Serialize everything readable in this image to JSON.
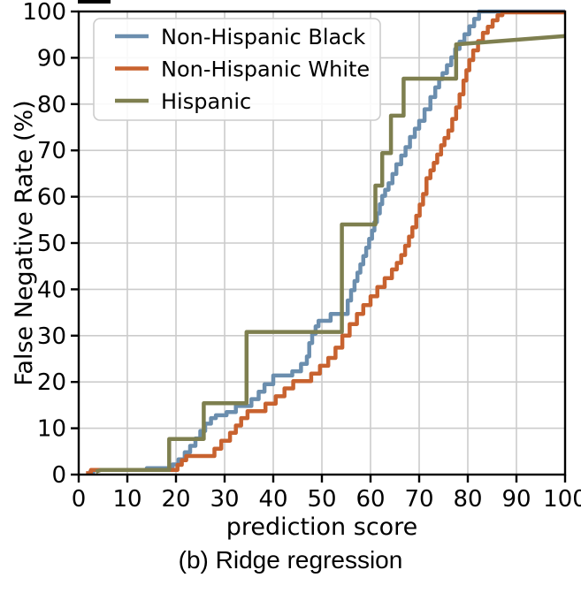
{
  "figure": {
    "caption": "(b) Ridge regression"
  },
  "chart_data": {
    "type": "line",
    "subtype": "ecdf-step-curves",
    "title": "",
    "xlabel": "prediction score",
    "ylabel": "False Negative Rate (%)",
    "xlim": [
      0,
      100
    ],
    "ylim": [
      0,
      100
    ],
    "xticks": [
      0,
      10,
      20,
      30,
      40,
      50,
      60,
      70,
      80,
      90,
      100
    ],
    "yticks": [
      0,
      10,
      20,
      30,
      40,
      50,
      60,
      70,
      80,
      90,
      100
    ],
    "grid": true,
    "grid_color": "#cccccc",
    "legend_position": "upper left",
    "series": [
      {
        "name": "Non-Hispanic Black",
        "color": "#6b8eae",
        "mode": "step",
        "points": [
          [
            2,
            0.5
          ],
          [
            3,
            1
          ],
          [
            14,
            1.4
          ],
          [
            19.3,
            2.2
          ],
          [
            20.5,
            3.3
          ],
          [
            21.8,
            4.8
          ],
          [
            22.9,
            6.2
          ],
          [
            24,
            7.8
          ],
          [
            25,
            9.4
          ],
          [
            26,
            11
          ],
          [
            27.2,
            12.2
          ],
          [
            28.2,
            12.8
          ],
          [
            30.4,
            13.5
          ],
          [
            32.3,
            14.8
          ],
          [
            35.5,
            16.3
          ],
          [
            37,
            17.9
          ],
          [
            38.2,
            19.5
          ],
          [
            40,
            21.4
          ],
          [
            43.9,
            22.3
          ],
          [
            45.7,
            23.9
          ],
          [
            46.9,
            25.5
          ],
          [
            47.4,
            28.4
          ],
          [
            48,
            30.4
          ],
          [
            48.7,
            32
          ],
          [
            49.3,
            33.2
          ],
          [
            51.8,
            34.7
          ],
          [
            55.3,
            37.6
          ],
          [
            56,
            39.8
          ],
          [
            56.7,
            41.8
          ],
          [
            57.3,
            43.6
          ],
          [
            57.9,
            45.4
          ],
          [
            58.5,
            47.2
          ],
          [
            59.1,
            49
          ],
          [
            59.7,
            50.9
          ],
          [
            60.3,
            52.7
          ],
          [
            60.8,
            54.5
          ],
          [
            61.3,
            56.4
          ],
          [
            61.9,
            58.4
          ],
          [
            62.4,
            60.2
          ],
          [
            63,
            61.5
          ],
          [
            63.7,
            62.9
          ],
          [
            64.5,
            64.9
          ],
          [
            65.3,
            67
          ],
          [
            66.3,
            68.9
          ],
          [
            67.2,
            70.7
          ],
          [
            68.1,
            72.9
          ],
          [
            69.1,
            74.7
          ],
          [
            70,
            76.4
          ],
          [
            71.1,
            78.9
          ],
          [
            72.3,
            81.5
          ],
          [
            73.3,
            83.6
          ],
          [
            74.1,
            85.4
          ],
          [
            74.8,
            86.7
          ],
          [
            75.7,
            88.4
          ],
          [
            76.6,
            90.1
          ],
          [
            77.4,
            91.9
          ],
          [
            78.3,
            93.5
          ],
          [
            79.3,
            95.1
          ],
          [
            80.3,
            96.8
          ],
          [
            81.3,
            98.4
          ],
          [
            82.3,
            100
          ],
          [
            100,
            100
          ]
        ]
      },
      {
        "name": "Non-Hispanic White",
        "color": "#c8622f",
        "mode": "step",
        "points": [
          [
            1.5,
            0.3
          ],
          [
            2.5,
            1
          ],
          [
            20.3,
            2.1
          ],
          [
            21.2,
            3.1
          ],
          [
            22.1,
            4
          ],
          [
            27.9,
            5.6
          ],
          [
            29.3,
            7.3
          ],
          [
            31.1,
            9
          ],
          [
            32.3,
            10.6
          ],
          [
            33.4,
            12.2
          ],
          [
            34.7,
            13.7
          ],
          [
            38.4,
            15.3
          ],
          [
            40.5,
            16.9
          ],
          [
            42.3,
            18.6
          ],
          [
            44.1,
            20.2
          ],
          [
            47.8,
            21.8
          ],
          [
            49.6,
            23.5
          ],
          [
            51.3,
            25.2
          ],
          [
            52.8,
            27.4
          ],
          [
            54.2,
            30
          ],
          [
            55.7,
            32.5
          ],
          [
            57.2,
            34.7
          ],
          [
            58.5,
            36.6
          ],
          [
            60,
            38.5
          ],
          [
            61.4,
            40.5
          ],
          [
            62.9,
            42.4
          ],
          [
            64.4,
            44.3
          ],
          [
            65.4,
            45.7
          ],
          [
            66.3,
            47.4
          ],
          [
            67.1,
            49.4
          ],
          [
            67.9,
            51.4
          ],
          [
            68.6,
            53.4
          ],
          [
            69.4,
            55.9
          ],
          [
            70.1,
            58.3
          ],
          [
            70.8,
            60.6
          ],
          [
            71.5,
            64
          ],
          [
            72.3,
            65.7
          ],
          [
            73,
            67.3
          ],
          [
            73.7,
            69.1
          ],
          [
            74.5,
            71.1
          ],
          [
            75.2,
            72.7
          ],
          [
            76,
            74.3
          ],
          [
            76.8,
            76.8
          ],
          [
            77.6,
            79.3
          ],
          [
            78.3,
            82.1
          ],
          [
            79.1,
            85.1
          ],
          [
            79.7,
            87.3
          ],
          [
            80.3,
            89.5
          ],
          [
            81.1,
            91.6
          ],
          [
            82.1,
            93.6
          ],
          [
            83.1,
            95.4
          ],
          [
            84.1,
            96.7
          ],
          [
            85.1,
            98.1
          ],
          [
            86.1,
            99.2
          ],
          [
            87.1,
            99.8
          ],
          [
            100,
            99.8
          ]
        ]
      },
      {
        "name": "Hispanic",
        "color": "#7e7f4f",
        "mode": "line",
        "points": [
          [
            3.5,
            0.6
          ],
          [
            4.5,
            1
          ],
          [
            18.6,
            1
          ],
          [
            18.6,
            7.7
          ],
          [
            25.7,
            7.7
          ],
          [
            25.7,
            15.4
          ],
          [
            34.5,
            15.4
          ],
          [
            34.5,
            30.8
          ],
          [
            54.1,
            30.8
          ],
          [
            54.1,
            54
          ],
          [
            61,
            54
          ],
          [
            61,
            62.4
          ],
          [
            62.4,
            62.4
          ],
          [
            62.4,
            69.4
          ],
          [
            64.2,
            69.4
          ],
          [
            64.2,
            77.5
          ],
          [
            66.8,
            77.5
          ],
          [
            66.8,
            85.5
          ],
          [
            77.6,
            85.5
          ],
          [
            77.6,
            92.9
          ],
          [
            100,
            94.7
          ]
        ]
      }
    ]
  }
}
